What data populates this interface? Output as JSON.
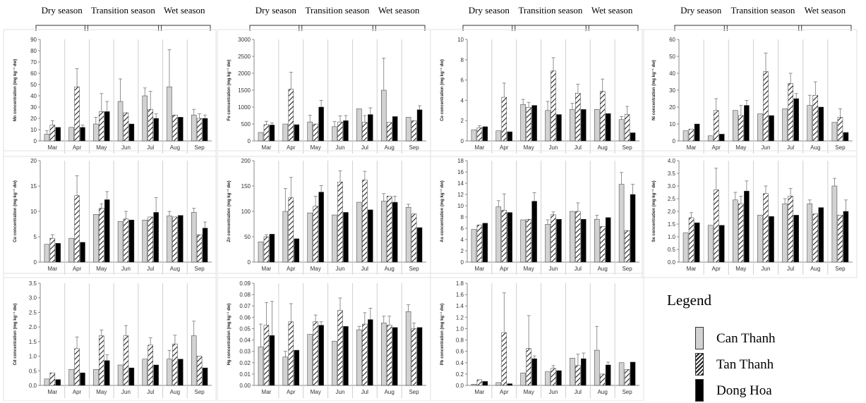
{
  "seasons": {
    "dry": "Dry season",
    "transition": "Transition season",
    "wet": "Wet season"
  },
  "months": [
    "Mar",
    "Apr",
    "May",
    "Jun",
    "Jul",
    "Aug",
    "Sep"
  ],
  "colors": {
    "Can Thanh": "#d2d2d2",
    "Tan Thanh": "hatch",
    "Dong Hoa": "#000000"
  },
  "legend": {
    "title": "Legend",
    "items": [
      "Can Thanh",
      "Tan Thanh",
      "Dong Hoa"
    ]
  },
  "chart_data": [
    {
      "type": "bar",
      "ylabel": "Mn concentration (mg kg⁻¹ dw)",
      "ylim": [
        0,
        90
      ],
      "yticks": [
        0,
        10,
        20,
        30,
        40,
        50,
        60,
        70,
        80,
        90
      ],
      "categories": [
        "Mar",
        "Apr",
        "May",
        "Jun",
        "Jul",
        "Aug",
        "Sep"
      ],
      "series": [
        {
          "name": "Can Thanh",
          "values": [
            6,
            12,
            15,
            35,
            40,
            48,
            23
          ],
          "errors": [
            3,
            0,
            6,
            20,
            7,
            33,
            5
          ]
        },
        {
          "name": "Tan Thanh",
          "values": [
            14,
            48,
            26,
            25,
            28,
            23,
            20
          ],
          "errors": [
            4,
            16,
            16,
            0,
            16,
            0,
            4
          ]
        },
        {
          "name": "Dong Hoa",
          "values": [
            12,
            12,
            26,
            15,
            20,
            21,
            20
          ],
          "errors": [
            0,
            2,
            9,
            0,
            4,
            0,
            3
          ]
        }
      ]
    },
    {
      "type": "bar",
      "ylabel": "Fe concentration (mg kg⁻¹ dw)",
      "ylim": [
        0,
        3000
      ],
      "yticks": [
        0,
        500,
        1000,
        1500,
        2000,
        2500,
        3000
      ],
      "categories": [
        "Mar",
        "Apr",
        "May",
        "Jun",
        "Jul",
        "Aug",
        "Sep"
      ],
      "series": [
        {
          "name": "Can Thanh",
          "values": [
            250,
            500,
            560,
            420,
            950,
            1500,
            700
          ],
          "errors": [
            0,
            0,
            200,
            150,
            0,
            950,
            0
          ]
        },
        {
          "name": "Tan Thanh",
          "values": [
            480,
            1530,
            500,
            560,
            550,
            550,
            600
          ],
          "errors": [
            100,
            500,
            0,
            180,
            200,
            0,
            0
          ]
        },
        {
          "name": "Dong Hoa",
          "values": [
            470,
            480,
            1000,
            600,
            780,
            720,
            920
          ],
          "errors": [
            60,
            0,
            200,
            150,
            200,
            0,
            120
          ]
        }
      ]
    },
    {
      "type": "bar",
      "ylabel": "Co concentration (mg kg⁻¹ dw)",
      "ylim": [
        0,
        10
      ],
      "yticks": [
        0,
        2,
        4,
        6,
        8,
        10
      ],
      "categories": [
        "Mar",
        "Apr",
        "May",
        "Jun",
        "Jul",
        "Aug",
        "Sep"
      ],
      "series": [
        {
          "name": "Can Thanh",
          "values": [
            1.1,
            1.0,
            3.6,
            3.0,
            3.1,
            3.1,
            2.1
          ],
          "errors": [
            0,
            0,
            0.5,
            0.9,
            0.6,
            0,
            0.3
          ]
        },
        {
          "name": "Tan Thanh",
          "values": [
            1.3,
            4.3,
            3.3,
            6.9,
            4.7,
            4.9,
            2.6
          ],
          "errors": [
            0.2,
            1.4,
            0.5,
            1.3,
            0.9,
            1.2,
            0.8
          ]
        },
        {
          "name": "Dong Hoa",
          "values": [
            1.4,
            0.9,
            3.5,
            2.6,
            3.1,
            2.7,
            0.8
          ]
        }
      ]
    },
    {
      "type": "bar",
      "ylabel": "Ni concentration (mg kg⁻¹ dw)",
      "ylim": [
        0,
        60
      ],
      "yticks": [
        0,
        10,
        20,
        30,
        40,
        50,
        60
      ],
      "categories": [
        "Mar",
        "Apr",
        "May",
        "Jun",
        "Jul",
        "Aug",
        "Sep"
      ],
      "series": [
        {
          "name": "Can Thanh",
          "values": [
            6,
            3,
            18,
            16,
            19,
            21,
            11
          ],
          "errors": [
            0,
            0,
            0,
            0,
            0,
            6,
            0
          ]
        },
        {
          "name": "Tan Thanh",
          "values": [
            7,
            18,
            15,
            41,
            34,
            27,
            14
          ],
          "errors": [
            0,
            7,
            6,
            11,
            6,
            8,
            5
          ]
        },
        {
          "name": "Dong Hoa",
          "values": [
            10,
            4,
            21,
            15,
            25,
            20,
            5
          ],
          "errors": [
            0,
            0,
            3,
            0,
            3,
            0,
            0
          ]
        }
      ]
    },
    {
      "type": "bar",
      "ylabel": "Cu concentration (mg kg⁻¹ dw)",
      "ylim": [
        0,
        20
      ],
      "yticks": [
        0,
        5,
        10,
        15,
        20
      ],
      "categories": [
        "Mar",
        "Apr",
        "May",
        "Jun",
        "Jul",
        "Aug",
        "Sep"
      ],
      "series": [
        {
          "name": "Can Thanh",
          "values": [
            3.5,
            4.7,
            9.4,
            8.0,
            8.3,
            9.1,
            9.8
          ],
          "errors": [
            0,
            0,
            0,
            0,
            0,
            0.9,
            0.8
          ]
        },
        {
          "name": "Tan Thanh",
          "values": [
            4.7,
            13.1,
            10.6,
            8.5,
            8.9,
            8.9,
            5.4
          ],
          "errors": [
            0.7,
            3.9,
            0.9,
            1.5,
            0,
            0,
            0
          ]
        },
        {
          "name": "Dong Hoa",
          "values": [
            3.7,
            3.9,
            12.3,
            8.3,
            9.8,
            9.2,
            6.7
          ],
          "errors": [
            0,
            0,
            1.6,
            0,
            2.9,
            0,
            1.2
          ]
        }
      ]
    },
    {
      "type": "bar",
      "ylabel": "Zn concentration (mg kg⁻¹ dw)",
      "ylim": [
        0,
        200
      ],
      "yticks": [
        0,
        50,
        100,
        150,
        200
      ],
      "categories": [
        "Mar",
        "Apr",
        "May",
        "Jun",
        "Jul",
        "Aug",
        "Sep"
      ],
      "series": [
        {
          "name": "Can Thanh",
          "values": [
            40,
            100,
            97,
            93,
            118,
            120,
            108
          ],
          "errors": [
            0,
            45,
            0,
            0,
            0,
            15,
            6
          ]
        },
        {
          "name": "Tan Thanh",
          "values": [
            50,
            127,
            110,
            158,
            162,
            130,
            95
          ],
          "errors": [
            4,
            40,
            20,
            22,
            17,
            0,
            0
          ]
        },
        {
          "name": "Dong Hoa",
          "values": [
            55,
            46,
            138,
            98,
            103,
            118,
            68
          ],
          "errors": [
            0,
            0,
            13,
            0,
            0,
            12,
            0
          ]
        }
      ]
    },
    {
      "type": "bar",
      "ylabel": "As concentration (mg kg⁻¹ dw)",
      "ylim": [
        0,
        18
      ],
      "yticks": [
        0,
        2,
        4,
        6,
        8,
        10,
        12,
        14,
        16,
        18
      ],
      "categories": [
        "Mar",
        "Apr",
        "May",
        "Jun",
        "Jul",
        "Aug",
        "Sep"
      ],
      "series": [
        {
          "name": "Can Thanh",
          "values": [
            5.8,
            9.8,
            7.5,
            6.7,
            9.0,
            7.6,
            13.8
          ],
          "errors": [
            0,
            1.1,
            0,
            0.8,
            0,
            0.7,
            2.1
          ]
        },
        {
          "name": "Tan Thanh",
          "values": [
            6.6,
            9.2,
            7.6,
            8.4,
            9.0,
            6.3,
            5.6
          ],
          "errors": [
            0,
            2.9,
            0,
            0.5,
            1.5,
            0,
            0
          ]
        },
        {
          "name": "Dong Hoa",
          "values": [
            6.9,
            8.8,
            10.8,
            7.6,
            7.6,
            7.9,
            12.0
          ],
          "errors": [
            0,
            0,
            1.5,
            0,
            0,
            0,
            1.8
          ]
        }
      ]
    },
    {
      "type": "bar",
      "ylabel": "Se concentration (mg kg⁻¹ dw)",
      "ylim": [
        0,
        4
      ],
      "yticks": [
        0,
        0.5,
        1,
        1.5,
        2,
        2.5,
        3,
        3.5,
        4
      ],
      "categories": [
        "Mar",
        "Apr",
        "May",
        "Jun",
        "Jul",
        "Aug",
        "Sep"
      ],
      "series": [
        {
          "name": "Can Thanh",
          "values": [
            1.15,
            1.45,
            2.45,
            1.85,
            2.3,
            2.3,
            3.0
          ],
          "errors": [
            0,
            0,
            0.3,
            0,
            0.2,
            0.15,
            0.3
          ]
        },
        {
          "name": "Tan Thanh",
          "values": [
            1.75,
            2.85,
            2.3,
            2.7,
            2.6,
            1.9,
            1.85
          ],
          "errors": [
            0.2,
            0.85,
            0.3,
            0.3,
            0.3,
            0,
            0
          ]
        },
        {
          "name": "Dong Hoa",
          "values": [
            1.55,
            1.45,
            2.8,
            1.8,
            1.85,
            2.15,
            2.0
          ],
          "errors": [
            0,
            0,
            0.4,
            0,
            0,
            0,
            0.45
          ]
        }
      ]
    },
    {
      "type": "bar",
      "ylabel": "Cd concentration (mg kg⁻¹ dw)",
      "ylim": [
        0,
        3.5
      ],
      "yticks": [
        0,
        0.5,
        1,
        1.5,
        2,
        2.5,
        3,
        3.5
      ],
      "categories": [
        "Mar",
        "Apr",
        "May",
        "Jun",
        "Jul",
        "Aug",
        "Sep"
      ],
      "series": [
        {
          "name": "Can Thanh",
          "values": [
            0.22,
            0.55,
            0.55,
            0.7,
            0.9,
            0.9,
            1.7
          ],
          "errors": [
            0,
            0,
            0,
            0,
            0,
            0.3,
            0.5
          ]
        },
        {
          "name": "Tan Thanh",
          "values": [
            0.43,
            1.26,
            1.7,
            1.7,
            1.38,
            1.42,
            1.0
          ],
          "errors": [
            0,
            0.4,
            0.2,
            0.35,
            0.25,
            0.3,
            0
          ]
        },
        {
          "name": "Dong Hoa",
          "values": [
            0.2,
            0.43,
            0.85,
            0.6,
            0.7,
            0.9,
            0.6
          ],
          "errors": [
            0,
            0,
            0.2,
            0,
            0,
            0,
            0
          ]
        }
      ]
    },
    {
      "type": "bar",
      "ylabel": "Hg concentration (mg kg⁻¹ dw)",
      "ylim": [
        0,
        0.09
      ],
      "yticks": [
        0,
        0.01,
        0.02,
        0.03,
        0.04,
        0.05,
        0.06,
        0.07,
        0.08,
        0.09
      ],
      "categories": [
        "Mar",
        "Apr",
        "May",
        "Jun",
        "Jul",
        "Aug",
        "Sep"
      ],
      "series": [
        {
          "name": "Can Thanh",
          "values": [
            0.034,
            0.025,
            0.045,
            0.039,
            0.049,
            0.055,
            0.065
          ],
          "errors": [
            0.02,
            0.005,
            0,
            0,
            0.003,
            0.006,
            0.006
          ]
        },
        {
          "name": "Tan Thanh",
          "values": [
            0.053,
            0.056,
            0.056,
            0.066,
            0.054,
            0.053,
            0.05
          ],
          "errors": [
            0.02,
            0.016,
            0.006,
            0.011,
            0.01,
            0.008,
            0.005
          ]
        },
        {
          "name": "Dong Hoa",
          "values": [
            0.044,
            0.031,
            0.053,
            0.052,
            0.058,
            0.051,
            0.051
          ],
          "errors": [
            0.03,
            0,
            0.003,
            0,
            0.01,
            0,
            0
          ]
        }
      ]
    },
    {
      "type": "bar",
      "ylabel": "Pb concentration (mg kg⁻¹ dw)",
      "ylim": [
        0,
        1.8
      ],
      "yticks": [
        0,
        0.2,
        0.4,
        0.6,
        0.8,
        1,
        1.2,
        1.4,
        1.6,
        1.8
      ],
      "categories": [
        "Mar",
        "Apr",
        "May",
        "Jun",
        "Jul",
        "Aug",
        "Sep"
      ],
      "series": [
        {
          "name": "Can Thanh",
          "values": [
            0.02,
            0.05,
            0.22,
            0.24,
            0.48,
            0.62,
            0.4
          ],
          "errors": [
            0,
            0,
            0,
            0,
            0,
            0.42,
            0
          ]
        },
        {
          "name": "Tan Thanh",
          "values": [
            0.1,
            0.93,
            0.65,
            0.3,
            0.35,
            0.2,
            0.28
          ],
          "errors": [
            0,
            0.7,
            0.58,
            0.05,
            0.2,
            0,
            0
          ]
        },
        {
          "name": "Dong Hoa",
          "values": [
            0.07,
            0.03,
            0.47,
            0.26,
            0.47,
            0.36,
            0.41
          ],
          "errors": [
            0,
            0,
            0.05,
            0,
            0.1,
            0.05,
            0
          ]
        }
      ]
    }
  ]
}
